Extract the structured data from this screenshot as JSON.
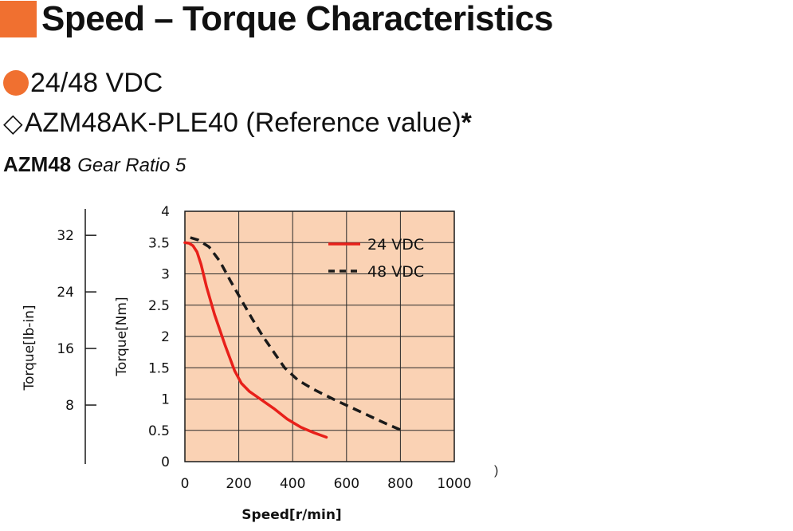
{
  "header": {
    "title": "Speed – Torque Characteristics",
    "accent_color": "#f07030"
  },
  "spec": {
    "voltage": "24/48 VDC",
    "voltage_icon": "orange-circle",
    "model": "AZM48AK-PLE40 (Reference value)",
    "model_icon": "white-diamond",
    "model_note_mark": "*",
    "series": "AZM48",
    "gear": "Gear Ratio 5",
    "stray_mark": ")"
  },
  "chart_data": {
    "type": "line",
    "xlabel": "Speed[r/min]",
    "ylabel": "Torque[Nm]",
    "ylabel_secondary": "Torque[lb-in]",
    "xlim": [
      0,
      1000
    ],
    "ylim": [
      0,
      4
    ],
    "xticks": [
      "0",
      "200",
      "400",
      "600",
      "800",
      "1000"
    ],
    "yticks": [
      "0",
      "0.5",
      "1",
      "1.5",
      "2",
      "2.5",
      "3",
      "3.5",
      "4"
    ],
    "yticks_secondary": [
      {
        "label": "8",
        "nm": 0.904
      },
      {
        "label": "16",
        "nm": 1.808
      },
      {
        "label": "24",
        "nm": 2.712
      },
      {
        "label": "32",
        "nm": 3.616
      }
    ],
    "secondary_ylim": [
      0,
      35.4
    ],
    "grid": true,
    "background": "#fad2b4",
    "legend_position": "top-right",
    "series": [
      {
        "name": "24 VDC",
        "color": "#e8201a",
        "style": "solid",
        "points": [
          [
            0,
            3.5
          ],
          [
            15,
            3.49
          ],
          [
            30,
            3.45
          ],
          [
            45,
            3.35
          ],
          [
            60,
            3.15
          ],
          [
            80,
            2.8
          ],
          [
            110,
            2.35
          ],
          [
            150,
            1.85
          ],
          [
            185,
            1.45
          ],
          [
            210,
            1.25
          ],
          [
            240,
            1.12
          ],
          [
            280,
            1.0
          ],
          [
            330,
            0.85
          ],
          [
            380,
            0.68
          ],
          [
            430,
            0.55
          ],
          [
            480,
            0.46
          ],
          [
            525,
            0.39
          ]
        ]
      },
      {
        "name": "48 VDC",
        "color": "#1a1a1a",
        "style": "dashed",
        "points": [
          [
            20,
            3.58
          ],
          [
            50,
            3.54
          ],
          [
            90,
            3.43
          ],
          [
            130,
            3.2
          ],
          [
            170,
            2.88
          ],
          [
            210,
            2.58
          ],
          [
            250,
            2.28
          ],
          [
            290,
            2.0
          ],
          [
            330,
            1.75
          ],
          [
            370,
            1.5
          ],
          [
            420,
            1.3
          ],
          [
            480,
            1.15
          ],
          [
            550,
            1.0
          ],
          [
            620,
            0.86
          ],
          [
            690,
            0.72
          ],
          [
            750,
            0.6
          ],
          [
            805,
            0.5
          ]
        ]
      }
    ]
  }
}
